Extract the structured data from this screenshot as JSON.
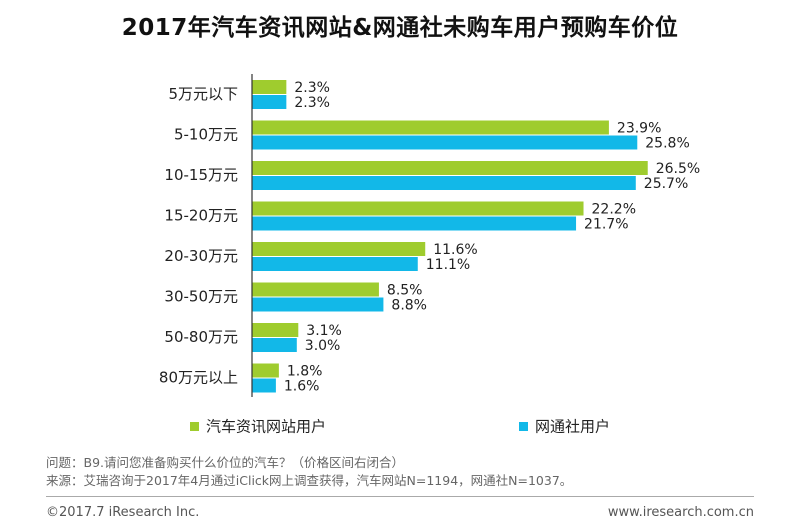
{
  "chart_data": {
    "type": "bar",
    "orientation": "horizontal",
    "title": "2017年汽车资讯网站&网通社未购车用户预购车价位",
    "categories": [
      "5万元以下",
      "5-10万元",
      "10-15万元",
      "15-20万元",
      "20-30万元",
      "30-50万元",
      "50-80万元",
      "80万元以上"
    ],
    "series": [
      {
        "name": "汽车资讯网站用户",
        "color": "#9fcc2e",
        "values": [
          2.3,
          23.9,
          26.5,
          22.2,
          11.6,
          8.5,
          3.1,
          1.8
        ]
      },
      {
        "name": "网通社用户",
        "color": "#12b8e8",
        "values": [
          2.3,
          25.8,
          25.7,
          21.7,
          11.1,
          8.8,
          3.0,
          1.6
        ]
      }
    ],
    "value_suffix": "%",
    "xlim": [
      0,
      30
    ],
    "grid": false,
    "legend_position": "bottom"
  },
  "notes": {
    "question": "问题：B9.请问您准备购买什么价位的汽车？（价格区间右闭合）",
    "source": "来源：艾瑞咨询于2017年4月通过iClick网上调查获得，汽车网站N=1194，网通社N=1037。"
  },
  "footer": {
    "copyright": "©2017.7 iResearch Inc.",
    "website": "www.iresearch.com.cn"
  }
}
